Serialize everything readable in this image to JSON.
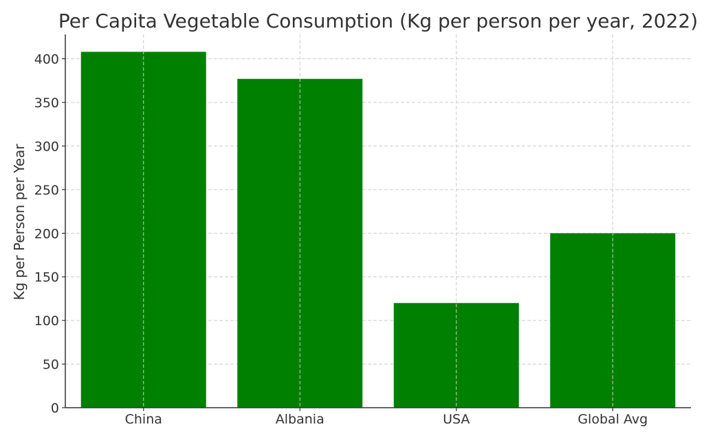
{
  "chart_data": {
    "type": "bar",
    "title": "Per Capita Vegetable Consumption (Kg per person per year, 2022)",
    "xlabel": "",
    "ylabel": "Kg per Person per Year",
    "categories": [
      "China",
      "Albania",
      "USA",
      "Global Avg"
    ],
    "values": [
      408,
      377,
      120,
      200
    ],
    "ylim": [
      0,
      428
    ],
    "yticks": [
      0,
      50,
      100,
      150,
      200,
      250,
      300,
      350,
      400
    ],
    "grid": true,
    "bar_color": "#008000"
  }
}
